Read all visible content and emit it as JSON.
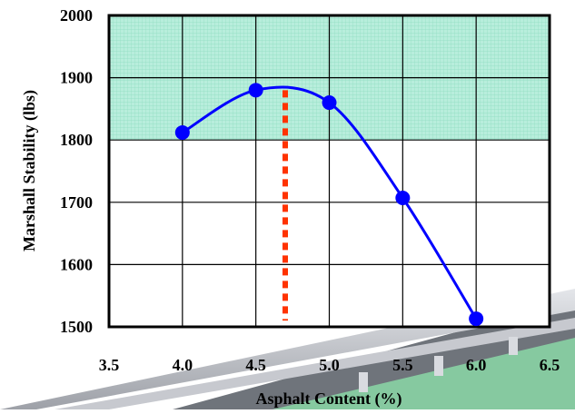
{
  "chart_data": {
    "type": "line",
    "title": "",
    "xlabel": "Asphalt Content (%)",
    "ylabel": "Marshall Stability (lbs)",
    "xlim": [
      3.5,
      6.5
    ],
    "ylim": [
      1500,
      2000
    ],
    "x_ticks": [
      "3.5",
      "4.0",
      "4.5",
      "5.0",
      "5.5",
      "6.0",
      "6.5"
    ],
    "y_ticks": [
      "1500",
      "1600",
      "1700",
      "1800",
      "1900",
      "2000"
    ],
    "grid": true,
    "series": [
      {
        "x": [
          4.0,
          4.5,
          5.0,
          5.5,
          6.0
        ],
        "y": [
          1812,
          1880,
          1860,
          1707,
          1513
        ],
        "line_color": "#0000ff",
        "marker": "circle"
      }
    ],
    "highlight_band": {
      "y_from": 1800,
      "y_to": 2000,
      "color": "#b2ecd9"
    },
    "optimum_line": {
      "x": 4.7,
      "y_from": 1510,
      "y_to": 1880,
      "style": "dotted",
      "color": "#ff3300"
    }
  },
  "background": {
    "road_colors": {
      "barrier": "#a9abb2",
      "barrier_light": "#d8dade",
      "deck": "#6f747b",
      "grass": "#86c9a0"
    }
  }
}
